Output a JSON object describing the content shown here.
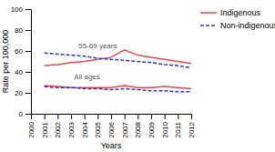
{
  "chart_data": {
    "type": "line",
    "x": [
      2000,
      2001,
      2002,
      2003,
      2004,
      2005,
      2006,
      2007,
      2008,
      2009,
      2010,
      2011,
      2012
    ],
    "series": [
      {
        "name": "Indigenous",
        "color": "#e8474c",
        "line_style": "solid",
        "values": [
          null,
          46,
          47,
          49,
          50,
          52,
          54,
          61,
          56,
          54,
          52,
          50,
          48
        ]
      },
      {
        "name": "Non-indigenous",
        "color": "#3333cc",
        "line_style": "dashed",
        "values": [
          null,
          58,
          57,
          56,
          55,
          53,
          52,
          51,
          50,
          49,
          47,
          46,
          44
        ]
      },
      {
        "name": "Indigenous",
        "color": "#e8474c",
        "line_style": "solid",
        "values": [
          null,
          27,
          26,
          25,
          25,
          25,
          25,
          27,
          25,
          25,
          26,
          25,
          24
        ]
      },
      {
        "name": "Non-indigenous",
        "color": "#3333cc",
        "line_style": "dashed",
        "values": [
          null,
          26,
          25,
          25,
          24,
          24,
          23,
          24,
          23,
          22,
          22,
          21,
          21
        ]
      }
    ],
    "annotations": [
      {
        "text": "55-69 years",
        "x": 2005.0,
        "y": 63
      },
      {
        "text": "All ages",
        "x": 2004.2,
        "y": 33
      }
    ],
    "xlabel": "Years",
    "ylabel": "Rate per 100,000",
    "xlim": [
      2000,
      2012
    ],
    "ylim": [
      0,
      100
    ],
    "xticks": [
      2000,
      2001,
      2002,
      2003,
      2004,
      2005,
      2006,
      2007,
      2008,
      2009,
      2010,
      2011,
      2012
    ],
    "yticks": [
      0,
      20,
      40,
      60,
      80,
      100
    ],
    "grid": false,
    "legend": "right"
  }
}
